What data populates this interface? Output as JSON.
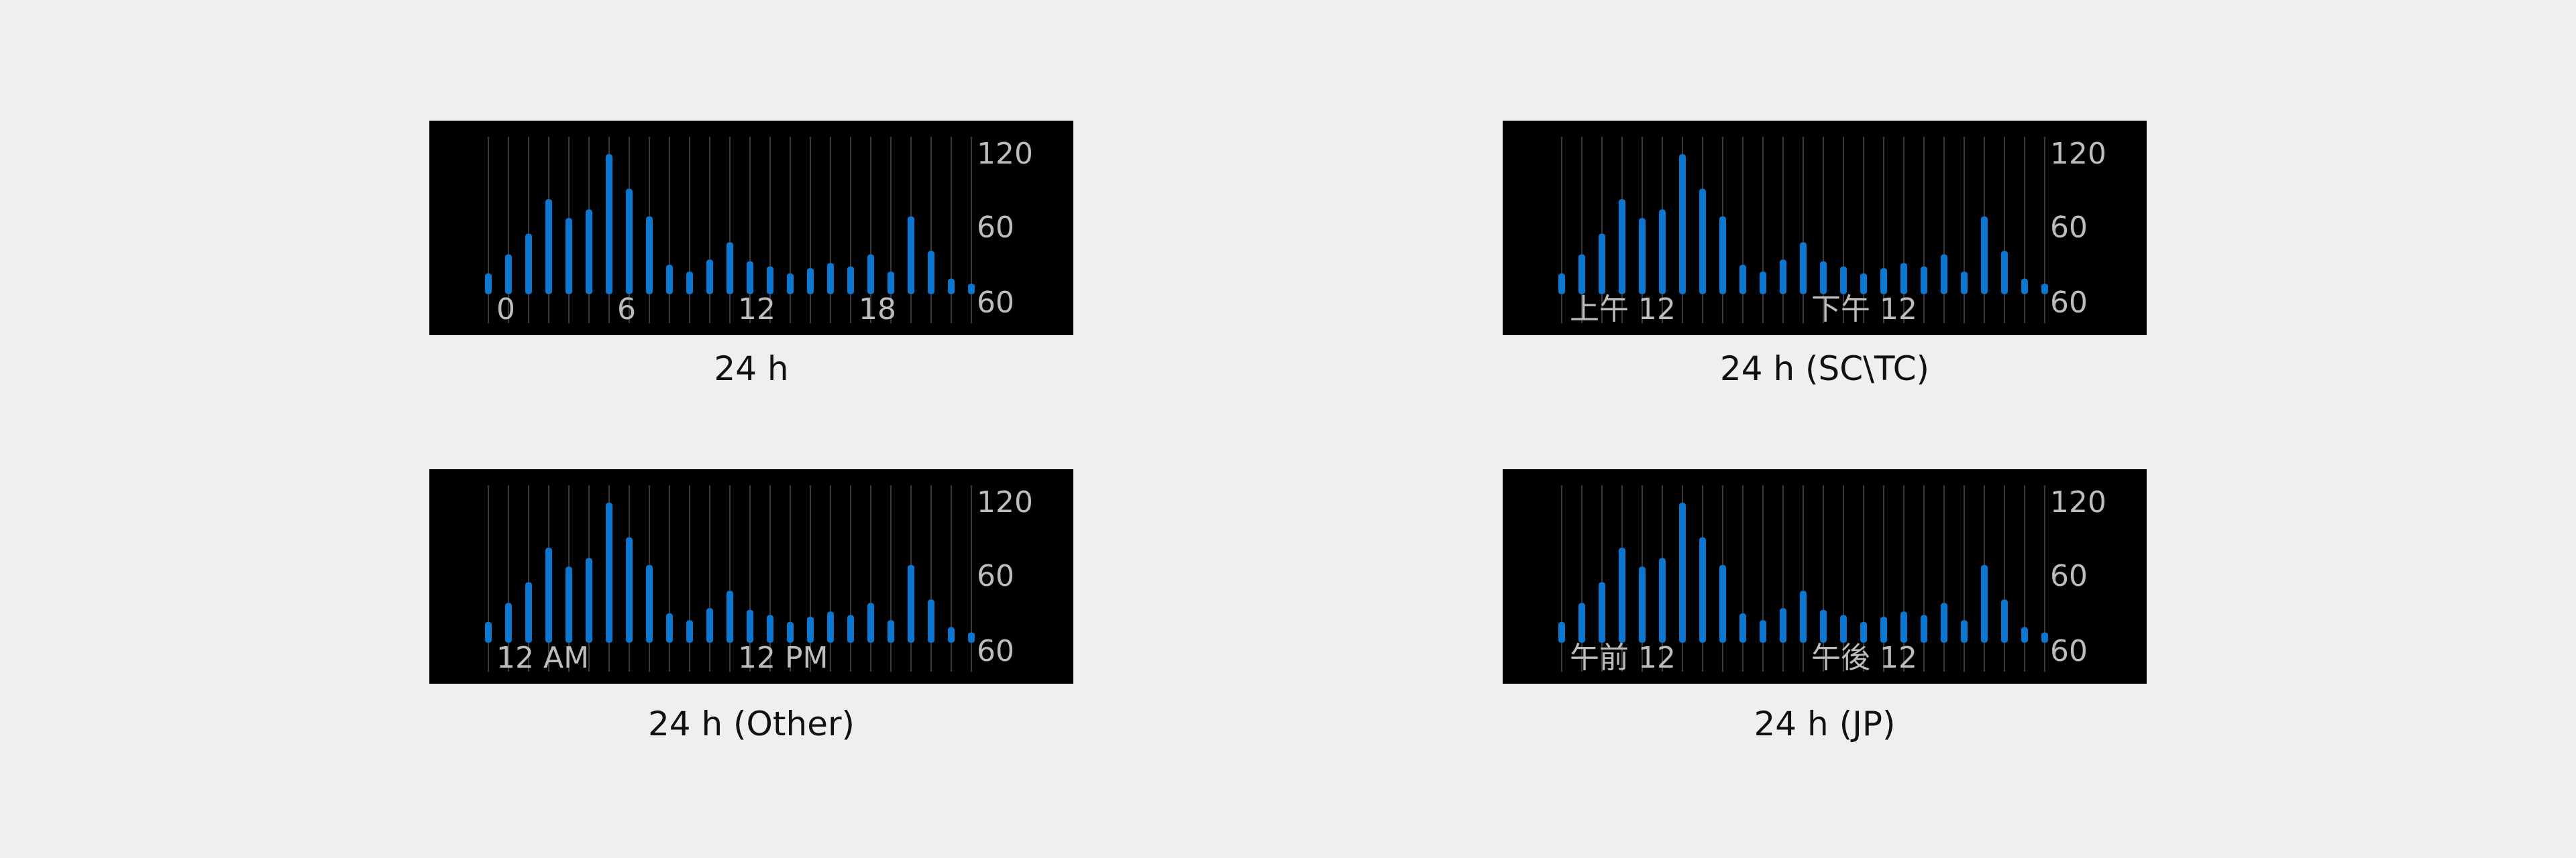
{
  "colors": {
    "page_background": "#efefef",
    "chart_background": "#000000",
    "bar": "#0a78d2",
    "grid_line": "#3a3a3a",
    "axis_label": "#bdbdbd",
    "caption_text": "#111111"
  },
  "chart_data": [
    {
      "type": "bar",
      "caption": "24 h",
      "x": [
        0,
        1,
        2,
        3,
        4,
        5,
        6,
        7,
        8,
        9,
        10,
        11,
        12,
        13,
        14,
        15,
        16,
        17,
        18,
        19,
        20,
        21,
        22,
        23,
        24
      ],
      "x_tick_labels": [
        {
          "x": 0,
          "label": "0"
        },
        {
          "x": 6,
          "label": "6"
        },
        {
          "x": 12,
          "label": "12"
        },
        {
          "x": 18,
          "label": "18"
        }
      ],
      "y_tick_labels": [
        "120",
        "60",
        "60"
      ],
      "bar_ranges": [
        [
          2,
          14
        ],
        [
          2,
          25
        ],
        [
          2,
          37
        ],
        [
          2,
          57
        ],
        [
          2,
          46
        ],
        [
          2,
          51
        ],
        [
          2,
          83
        ],
        [
          2,
          63
        ],
        [
          2,
          47
        ],
        [
          2,
          19
        ],
        [
          2,
          15
        ],
        [
          2,
          22
        ],
        [
          2,
          32
        ],
        [
          2,
          21
        ],
        [
          2,
          18
        ],
        [
          2,
          14
        ],
        [
          2,
          17
        ],
        [
          2,
          20
        ],
        [
          2,
          18
        ],
        [
          2,
          25
        ],
        [
          2,
          15
        ],
        [
          2,
          47
        ],
        [
          2,
          27
        ],
        [
          2,
          11
        ],
        [
          2,
          8
        ]
      ],
      "grid": true,
      "ylim": [
        0,
        90
      ]
    },
    {
      "type": "bar",
      "caption": "24 h (SC\\TC)",
      "x": [
        0,
        1,
        2,
        3,
        4,
        5,
        6,
        7,
        8,
        9,
        10,
        11,
        12,
        13,
        14,
        15,
        16,
        17,
        18,
        19,
        20,
        21,
        22,
        23,
        24
      ],
      "x_tick_labels": [
        {
          "x": 0,
          "label": "上午 12"
        },
        {
          "x": 12,
          "label": "下午 12"
        }
      ],
      "y_tick_labels": [
        "120",
        "60",
        "60"
      ],
      "bar_ranges": [
        [
          2,
          14
        ],
        [
          2,
          25
        ],
        [
          2,
          37
        ],
        [
          2,
          57
        ],
        [
          2,
          46
        ],
        [
          2,
          51
        ],
        [
          2,
          83
        ],
        [
          2,
          63
        ],
        [
          2,
          47
        ],
        [
          2,
          19
        ],
        [
          2,
          15
        ],
        [
          2,
          22
        ],
        [
          2,
          32
        ],
        [
          2,
          21
        ],
        [
          2,
          18
        ],
        [
          2,
          14
        ],
        [
          2,
          17
        ],
        [
          2,
          20
        ],
        [
          2,
          18
        ],
        [
          2,
          25
        ],
        [
          2,
          15
        ],
        [
          2,
          47
        ],
        [
          2,
          27
        ],
        [
          2,
          11
        ],
        [
          2,
          8
        ]
      ],
      "grid": true,
      "ylim": [
        0,
        90
      ]
    },
    {
      "type": "bar",
      "caption": "24 h (Other)",
      "x": [
        0,
        1,
        2,
        3,
        4,
        5,
        6,
        7,
        8,
        9,
        10,
        11,
        12,
        13,
        14,
        15,
        16,
        17,
        18,
        19,
        20,
        21,
        22,
        23,
        24
      ],
      "x_tick_labels": [
        {
          "x": 0,
          "label": "12 AM"
        },
        {
          "x": 12,
          "label": "12 PM"
        }
      ],
      "y_tick_labels": [
        "120",
        "60",
        "60"
      ],
      "bar_ranges": [
        [
          2,
          14
        ],
        [
          2,
          25
        ],
        [
          2,
          37
        ],
        [
          2,
          57
        ],
        [
          2,
          46
        ],
        [
          2,
          51
        ],
        [
          2,
          83
        ],
        [
          2,
          63
        ],
        [
          2,
          47
        ],
        [
          2,
          19
        ],
        [
          2,
          15
        ],
        [
          2,
          22
        ],
        [
          2,
          32
        ],
        [
          2,
          21
        ],
        [
          2,
          18
        ],
        [
          2,
          14
        ],
        [
          2,
          17
        ],
        [
          2,
          20
        ],
        [
          2,
          18
        ],
        [
          2,
          25
        ],
        [
          2,
          15
        ],
        [
          2,
          47
        ],
        [
          2,
          27
        ],
        [
          2,
          11
        ],
        [
          2,
          8
        ]
      ],
      "grid": true,
      "ylim": [
        0,
        90
      ]
    },
    {
      "type": "bar",
      "caption": "24 h (JP)",
      "x": [
        0,
        1,
        2,
        3,
        4,
        5,
        6,
        7,
        8,
        9,
        10,
        11,
        12,
        13,
        14,
        15,
        16,
        17,
        18,
        19,
        20,
        21,
        22,
        23,
        24
      ],
      "x_tick_labels": [
        {
          "x": 0,
          "label": "午前 12"
        },
        {
          "x": 12,
          "label": "午後 12"
        }
      ],
      "y_tick_labels": [
        "120",
        "60",
        "60"
      ],
      "bar_ranges": [
        [
          2,
          14
        ],
        [
          2,
          25
        ],
        [
          2,
          37
        ],
        [
          2,
          57
        ],
        [
          2,
          46
        ],
        [
          2,
          51
        ],
        [
          2,
          83
        ],
        [
          2,
          63
        ],
        [
          2,
          47
        ],
        [
          2,
          19
        ],
        [
          2,
          15
        ],
        [
          2,
          22
        ],
        [
          2,
          32
        ],
        [
          2,
          21
        ],
        [
          2,
          18
        ],
        [
          2,
          14
        ],
        [
          2,
          17
        ],
        [
          2,
          20
        ],
        [
          2,
          18
        ],
        [
          2,
          25
        ],
        [
          2,
          15
        ],
        [
          2,
          47
        ],
        [
          2,
          27
        ],
        [
          2,
          11
        ],
        [
          2,
          8
        ]
      ],
      "grid": true,
      "ylim": [
        0,
        90
      ]
    }
  ]
}
